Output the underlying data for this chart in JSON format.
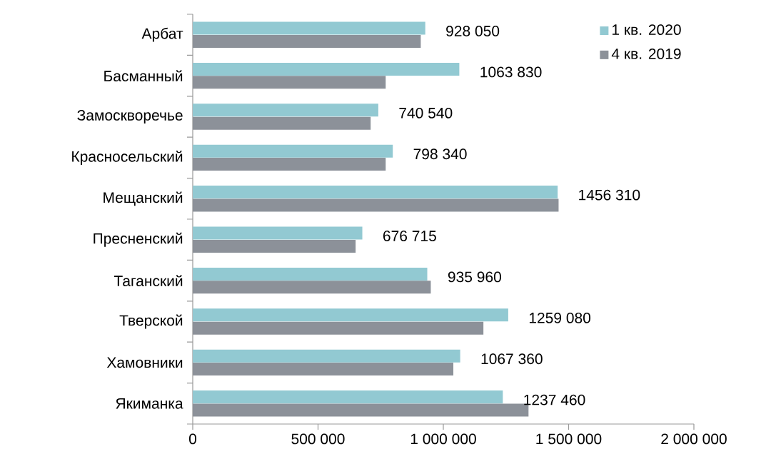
{
  "chart_data": {
    "type": "bar",
    "orientation": "horizontal",
    "categories": [
      "Арбат",
      "Басманный",
      "Замоскворечье",
      "Красносельский",
      "Мещанский",
      "Пресненский",
      "Таганский",
      "Тверской",
      "Хамовники",
      "Якиманка"
    ],
    "series": [
      {
        "name": "1 кв. 2020",
        "color": "#92c9d2",
        "values": [
          928050,
          1063830,
          740540,
          798340,
          1456310,
          676715,
          935960,
          1259080,
          1067360,
          1237460
        ],
        "value_labels": [
          "928 050",
          "1063 830",
          "740 540",
          "798 340",
          "1456 310",
          "676 715",
          "935 960",
          "1259 080",
          "1067 360",
          "1237 460"
        ]
      },
      {
        "name": "4 кв. 2019",
        "color": "#8c9199",
        "values": [
          910000,
          770000,
          710000,
          770000,
          1460000,
          650000,
          950000,
          1160000,
          1040000,
          1340000
        ]
      }
    ],
    "xlim": [
      0,
      2000000
    ],
    "xticks": [
      {
        "value": 0,
        "label": "0"
      },
      {
        "value": 500000,
        "label": "500 000"
      },
      {
        "value": 1000000,
        "label": "1 000 000"
      },
      {
        "value": 1500000,
        "label": "1 500 000"
      },
      {
        "value": 2000000,
        "label": "2 000 000"
      }
    ],
    "grid": false,
    "legend": "top right"
  }
}
